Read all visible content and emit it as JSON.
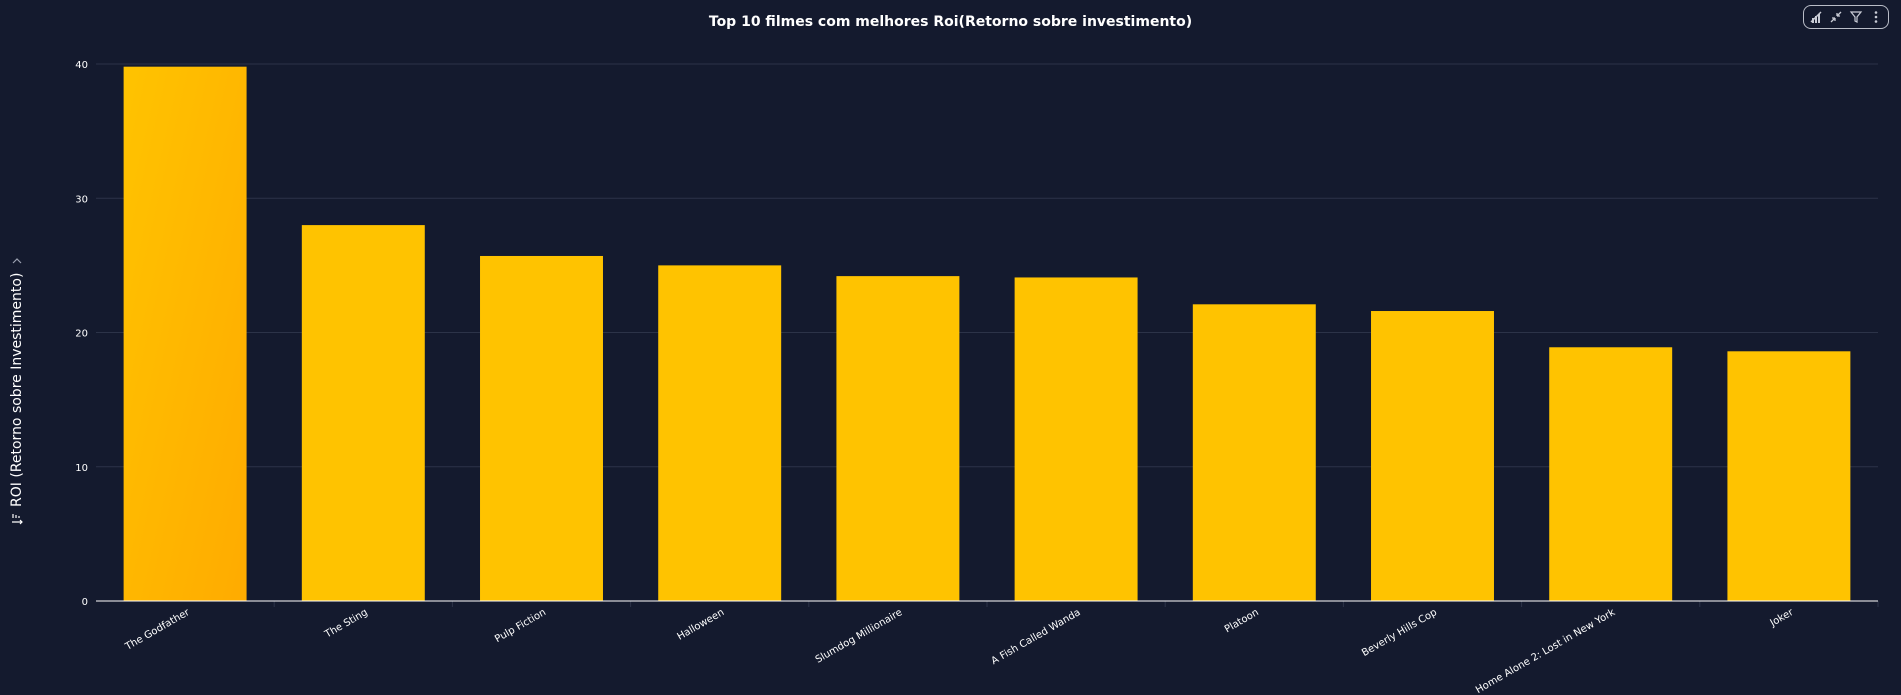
{
  "chart_data": {
    "type": "bar",
    "title": "Top 10 filmes com melhores Roi(Retorno sobre investimento)",
    "xlabel": "",
    "ylabel": "ROI (Retorno sobre Investimento)",
    "ylim": [
      0,
      40
    ],
    "yticks": [
      0,
      10,
      20,
      30,
      40
    ],
    "grid": true,
    "categories": [
      "The Godfather",
      "The Sting",
      "Pulp Fiction",
      "Halloween",
      "Slumdog Millionaire",
      "A Fish Called Wanda",
      "Platoon",
      "Beverly Hills Cop",
      "Home Alone 2: Lost in New York",
      "Joker"
    ],
    "values": [
      39.8,
      28.0,
      25.7,
      25.0,
      24.2,
      24.1,
      22.1,
      21.6,
      18.9,
      18.6
    ],
    "colors": {
      "bar": "#ffc300",
      "highlight_bar": "#ffab00",
      "grid": "#2c3348",
      "axis": "#ffffff",
      "background": "#141a2e"
    }
  },
  "toolbar": {
    "icons": [
      "chart-icon",
      "collapse-icon",
      "filter-icon",
      "more-icon"
    ]
  }
}
